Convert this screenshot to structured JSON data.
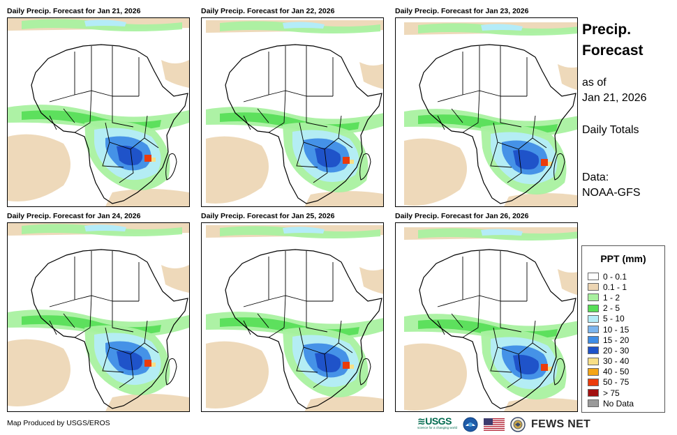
{
  "panels": [
    {
      "title": "Daily Precip. Forecast for Jan 21, 2026"
    },
    {
      "title": "Daily Precip. Forecast for Jan 22, 2026"
    },
    {
      "title": "Daily Precip. Forecast for Jan 23, 2026"
    },
    {
      "title": "Daily Precip. Forecast for Jan 24, 2026"
    },
    {
      "title": "Daily Precip. Forecast for Jan 25, 2026"
    },
    {
      "title": "Daily Precip. Forecast for Jan 26, 2026"
    }
  ],
  "side": {
    "title_line1": "Precip.",
    "title_line2": "Forecast",
    "asof_line1": "as of",
    "asof_line2": "Jan 21, 2026",
    "totals": "Daily Totals",
    "data_line1": "Data:",
    "data_line2": "NOAA-GFS"
  },
  "legend": {
    "title": "PPT (mm)",
    "items": [
      {
        "label": "0 - 0.1",
        "color": "#ffffff"
      },
      {
        "label": "0.1 - 1",
        "color": "#ecd5b3"
      },
      {
        "label": "1 - 2",
        "color": "#a9f1a0"
      },
      {
        "label": "2 - 5",
        "color": "#58de58"
      },
      {
        "label": "5 - 10",
        "color": "#b4ecf8"
      },
      {
        "label": "10 - 15",
        "color": "#7cb5ee"
      },
      {
        "label": "15 - 20",
        "color": "#3f8de6"
      },
      {
        "label": "20 - 30",
        "color": "#1f53c9"
      },
      {
        "label": "30 - 40",
        "color": "#f8df86"
      },
      {
        "label": "40 - 50",
        "color": "#f4a516"
      },
      {
        "label": "50 - 75",
        "color": "#eb3b0b"
      },
      {
        "label": "> 75",
        "color": "#a31010"
      },
      {
        "label": "No Data",
        "color": "#9a9a9a"
      }
    ]
  },
  "footer": {
    "credit": "Map Produced by USGS/EROS",
    "usgs": "USGS",
    "usgs_tagline": "science for a changing world",
    "fews": "FEWS NET"
  }
}
